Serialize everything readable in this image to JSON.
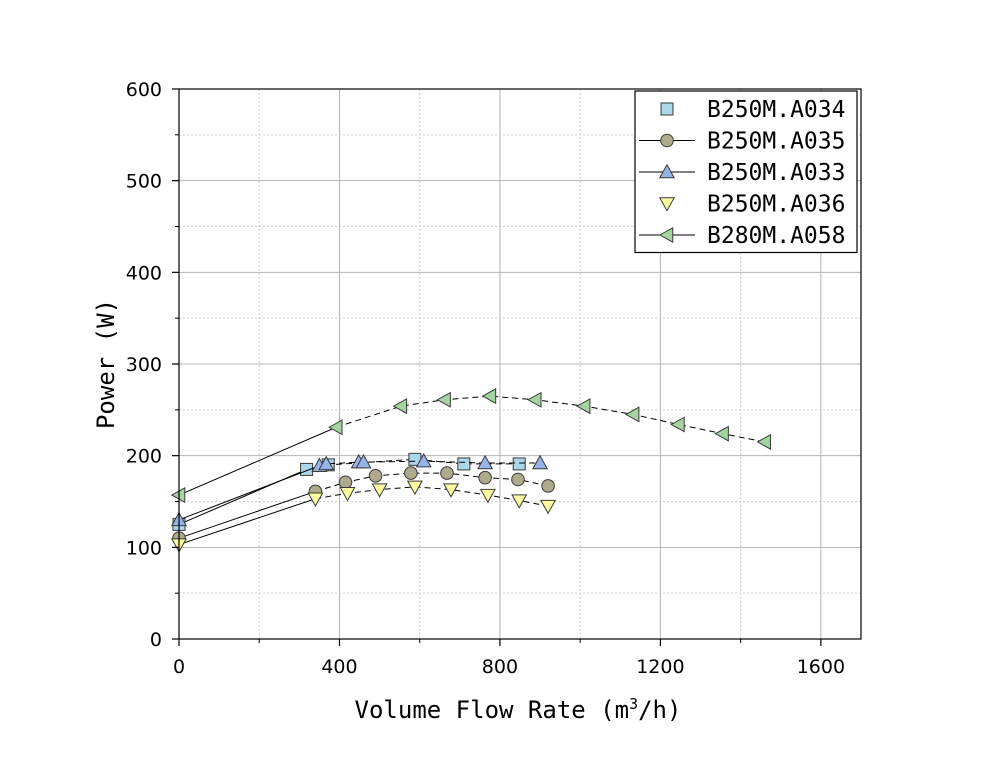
{
  "chart_data": {
    "type": "line",
    "xlabel": "Volume Flow Rate (m",
    "xlabel_sup": "3",
    "xlabel_end": "/h)",
    "ylabel": "Power (W)",
    "xlim": [
      0,
      1700
    ],
    "ylim": [
      0,
      600
    ],
    "x_ticks": [
      "0",
      "400",
      "800",
      "1200",
      "1600"
    ],
    "y_ticks": [
      "0",
      "100",
      "200",
      "300",
      "400",
      "500",
      "600"
    ],
    "grid": true,
    "legend_position": "top-right",
    "series": [
      {
        "name": "B250M.A034",
        "marker": "square",
        "color": "#a9d8ea",
        "x": [
          0,
          318,
          372,
          588,
          710,
          848
        ],
        "y": [
          125,
          185,
          190,
          196,
          191,
          191
        ]
      },
      {
        "name": "B250M.A035",
        "marker": "circle",
        "color": "#aeaa8c",
        "x": [
          0,
          340,
          415,
          490,
          578,
          668,
          763,
          845,
          920
        ],
        "y": [
          110,
          161,
          171,
          178,
          181,
          181,
          176,
          174,
          167
        ]
      },
      {
        "name": "B250M.A033",
        "marker": "triangle-up",
        "color": "#96b4e8",
        "x": [
          0,
          350,
          367,
          448,
          460,
          610,
          763,
          900
        ],
        "y": [
          130,
          189,
          191,
          193,
          193,
          194,
          192,
          192
        ]
      },
      {
        "name": "B250M.A036",
        "marker": "triangle-down",
        "color": "#fbfba0",
        "x": [
          0,
          340,
          420,
          500,
          588,
          678,
          770,
          848,
          920
        ],
        "y": [
          103,
          153,
          159,
          163,
          166,
          163,
          157,
          151,
          145
        ]
      },
      {
        "name": "B280M.A058",
        "marker": "triangle-left",
        "color": "#a4d4a0",
        "x": [
          0,
          392,
          553,
          662,
          775,
          888,
          1010,
          1132,
          1245,
          1355,
          1460
        ],
        "y": [
          157,
          231,
          254,
          261,
          265,
          261,
          254,
          245,
          234,
          224,
          215
        ]
      }
    ]
  }
}
